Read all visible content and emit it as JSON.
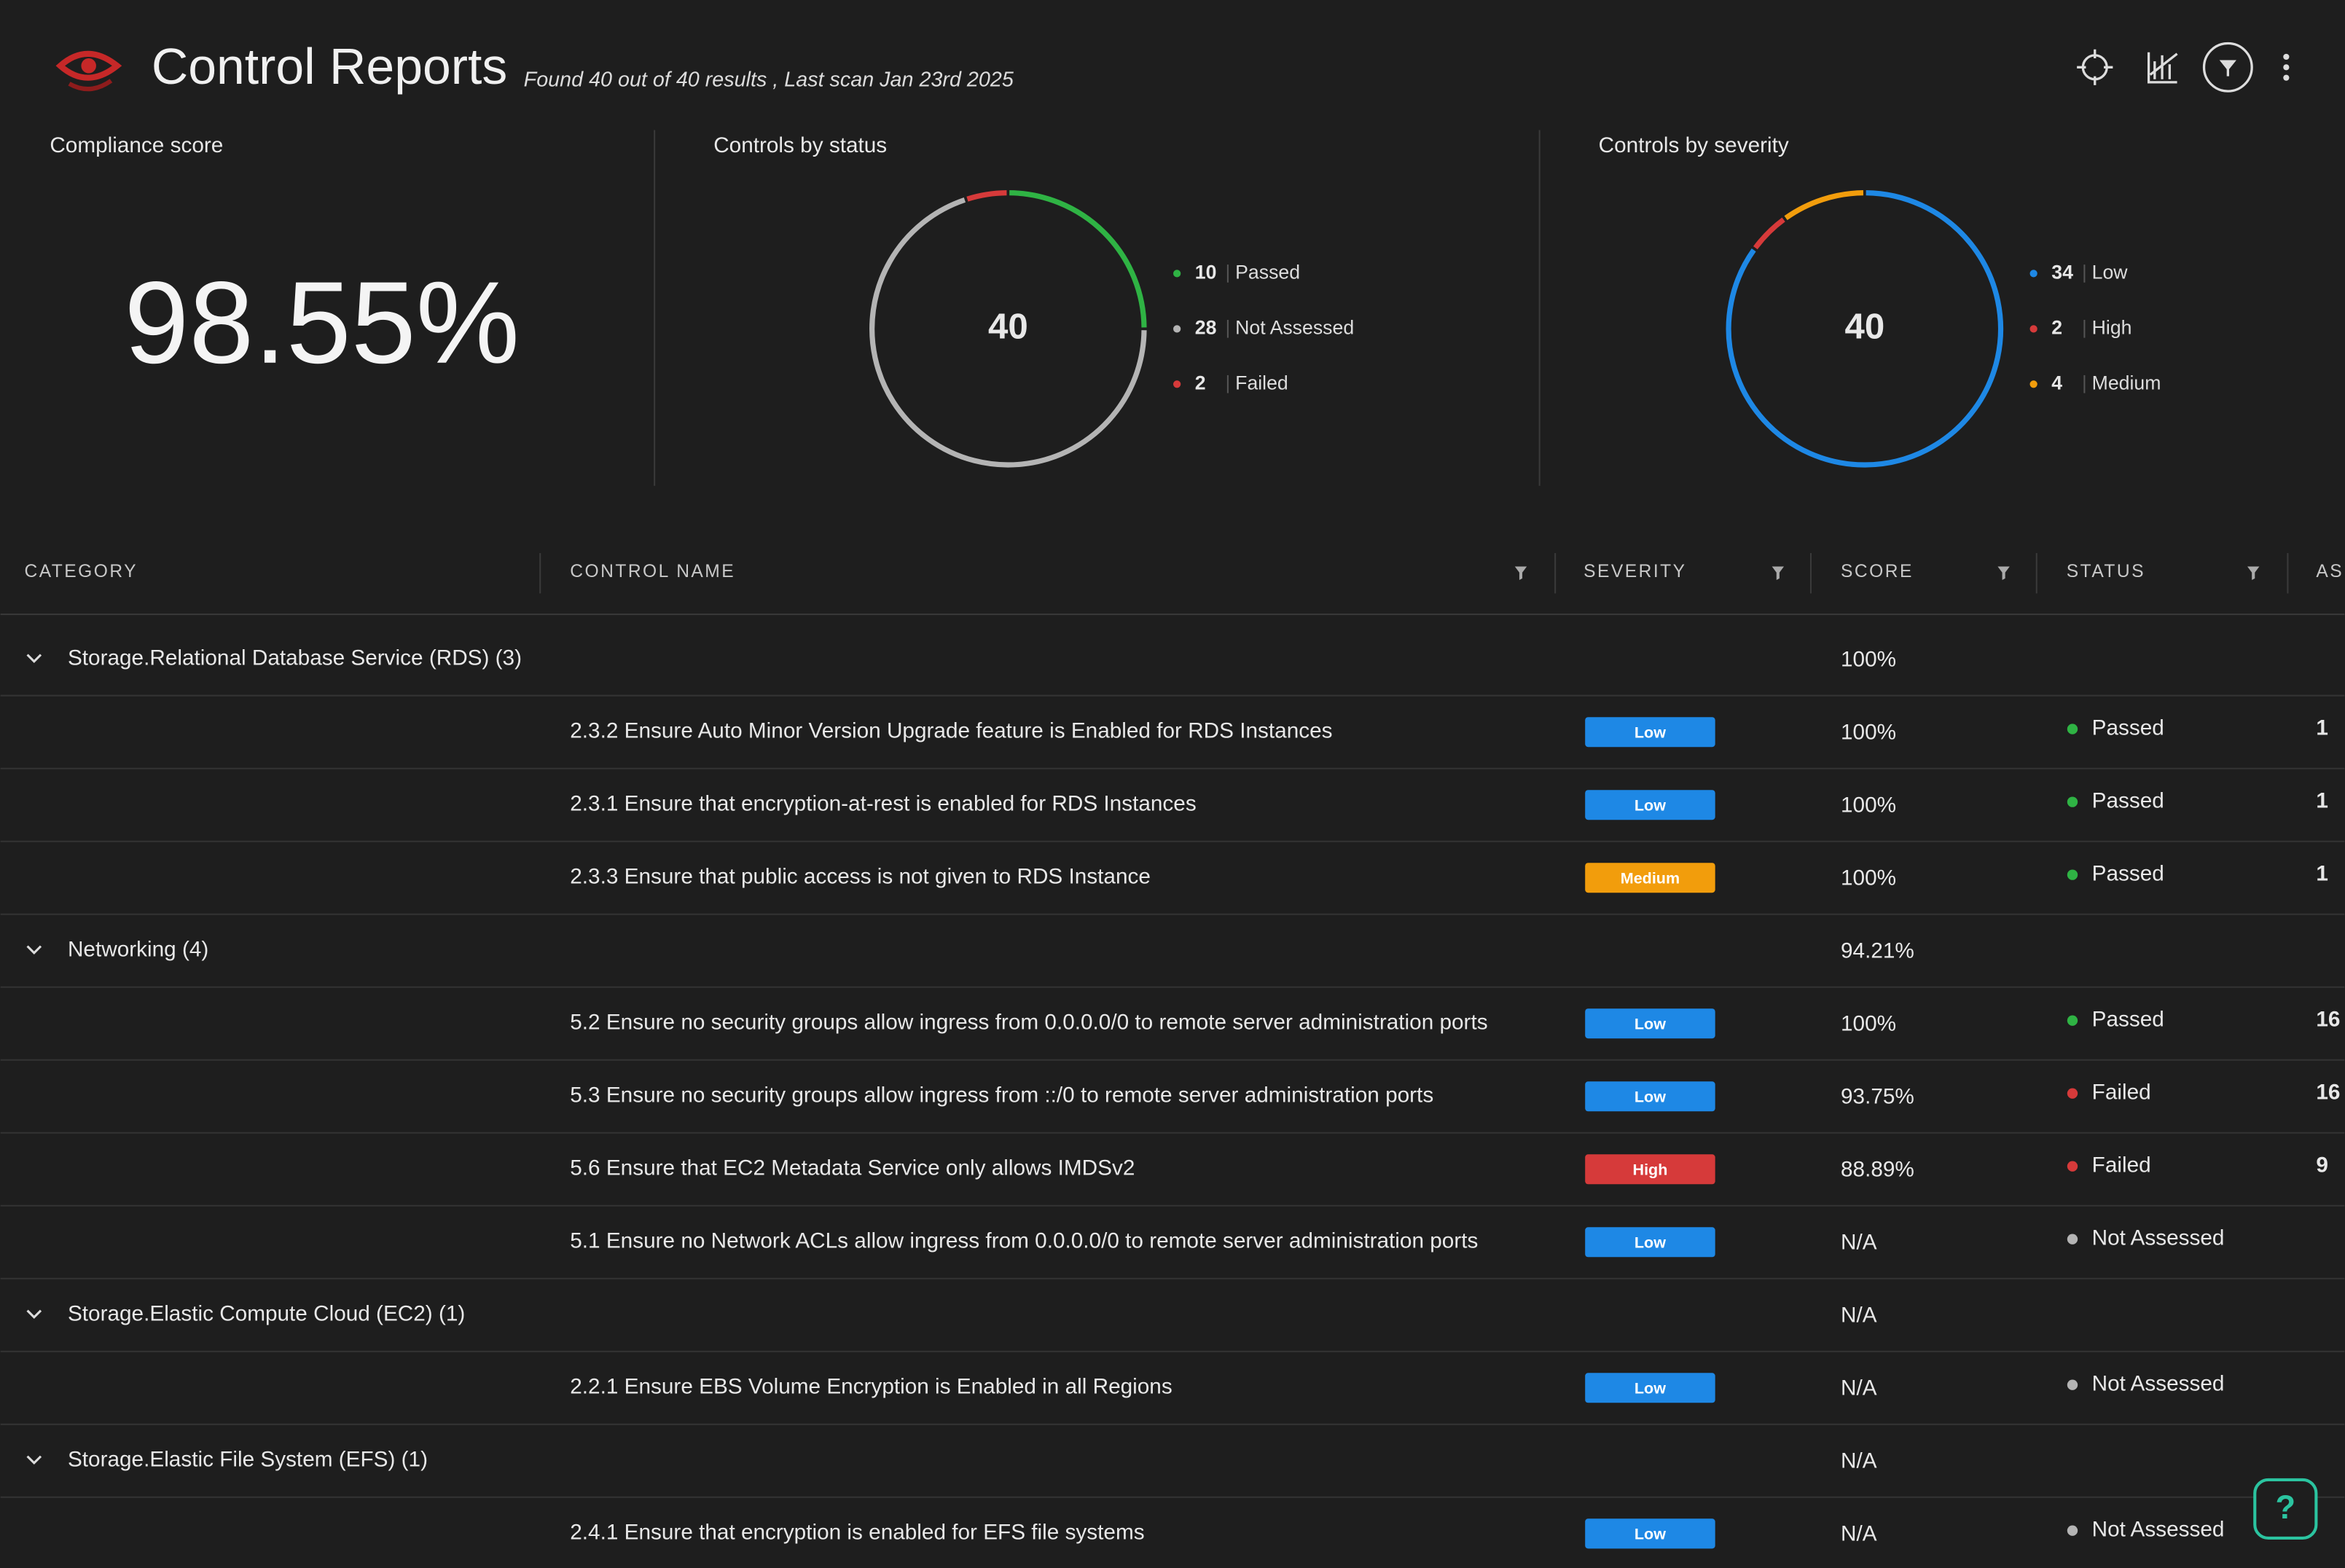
{
  "header": {
    "title": "Control Reports",
    "subtitle": "Found 40 out of 40 results , Last scan Jan 23rd 2025"
  },
  "compliance": {
    "title": "Compliance score",
    "value": "98.55%"
  },
  "status_chart": {
    "title": "Controls by status",
    "total": 40,
    "items": [
      {
        "label": "Passed",
        "value": 10,
        "color": "#2fb344"
      },
      {
        "label": "Not Assessed",
        "value": 28,
        "color": "#b4b4b4"
      },
      {
        "label": "Failed",
        "value": 2,
        "color": "#d63a3a"
      }
    ]
  },
  "severity_chart": {
    "title": "Controls by severity",
    "total": 40,
    "items": [
      {
        "label": "Low",
        "value": 34,
        "color": "#1e88e5"
      },
      {
        "label": "High",
        "value": 2,
        "color": "#d63a3a"
      },
      {
        "label": "Medium",
        "value": 4,
        "color": "#f29d0c"
      }
    ]
  },
  "table": {
    "columns": [
      "CATEGORY",
      "CONTROL NAME",
      "SEVERITY",
      "SCORE",
      "STATUS",
      "AS"
    ],
    "groups": [
      {
        "name": "Storage.Relational Database Service (RDS) (3)",
        "score": "100%",
        "rows": [
          {
            "name": "2.3.2 Ensure Auto Minor Version Upgrade feature is Enabled for RDS Instances",
            "severity": "Low",
            "score": "100%",
            "status": "Passed",
            "assets": 1
          },
          {
            "name": "2.3.1 Ensure that encryption-at-rest is enabled for RDS Instances",
            "severity": "Low",
            "score": "100%",
            "status": "Passed",
            "assets": 1
          },
          {
            "name": "2.3.3 Ensure that public access is not given to RDS Instance",
            "severity": "Medium",
            "score": "100%",
            "status": "Passed",
            "assets": 1
          }
        ]
      },
      {
        "name": "Networking (4)",
        "score": "94.21%",
        "rows": [
          {
            "name": "5.2 Ensure no security groups allow ingress from 0.0.0.0/0 to remote server administration ports",
            "severity": "Low",
            "score": "100%",
            "status": "Passed",
            "assets": 16
          },
          {
            "name": "5.3 Ensure no security groups allow ingress from ::/0 to remote server administration ports",
            "severity": "Low",
            "score": "93.75%",
            "status": "Failed",
            "assets": 16
          },
          {
            "name": "5.6 Ensure that EC2 Metadata Service only allows IMDSv2",
            "severity": "High",
            "score": "88.89%",
            "status": "Failed",
            "assets": 9
          },
          {
            "name": "5.1 Ensure no Network ACLs allow ingress from 0.0.0.0/0 to remote server administration ports",
            "severity": "Low",
            "score": "N/A",
            "status": "Not Assessed"
          }
        ]
      },
      {
        "name": "Storage.Elastic Compute Cloud (EC2) (1)",
        "score": "N/A",
        "rows": [
          {
            "name": "2.2.1 Ensure EBS Volume Encryption is Enabled in all Regions",
            "severity": "Low",
            "score": "N/A",
            "status": "Not Assessed"
          }
        ]
      },
      {
        "name": "Storage.Elastic File System (EFS) (1)",
        "score": "N/A",
        "rows": [
          {
            "name": "2.4.1 Ensure that encryption is enabled for EFS file systems",
            "severity": "Low",
            "score": "N/A",
            "status": "Not Assessed"
          }
        ]
      }
    ]
  }
}
